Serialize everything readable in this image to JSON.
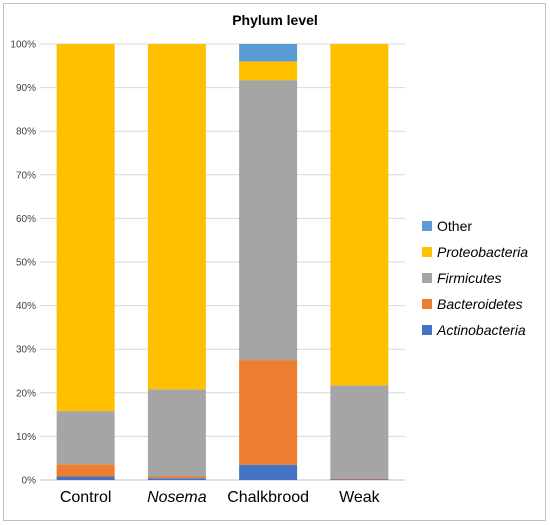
{
  "chart_data": {
    "type": "bar",
    "stacked": true,
    "title": "Phylum level",
    "categories": [
      "Control",
      "Nosema",
      "Chalkbrood",
      "Weak"
    ],
    "italic_categories": [
      "Nosema"
    ],
    "y_ticks": [
      "0%",
      "10%",
      "20%",
      "30%",
      "40%",
      "50%",
      "60%",
      "70%",
      "80%",
      "90%",
      "100%"
    ],
    "ylim": [
      0,
      100
    ],
    "grid": true,
    "legend_position": "right",
    "series": [
      {
        "name": "Actinobacteria",
        "italic": true,
        "color": "#4472C4",
        "values": [
          0.8,
          0.4,
          3.5,
          0.2
        ]
      },
      {
        "name": "Bacteroidetes",
        "italic": true,
        "color": "#ED7D31",
        "values": [
          2.8,
          0.4,
          24.0,
          0.2
        ]
      },
      {
        "name": "Firmicutes",
        "italic": true,
        "color": "#A5A5A5",
        "values": [
          12.2,
          20.0,
          64.2,
          21.3
        ]
      },
      {
        "name": "Proteobacteria",
        "italic": true,
        "color": "#FFC000",
        "values": [
          84.2,
          79.2,
          4.3,
          78.3
        ]
      },
      {
        "name": "Other",
        "italic": false,
        "color": "#5B9BD5",
        "values": [
          0.0,
          0.0,
          4.0,
          0.0
        ]
      }
    ]
  }
}
